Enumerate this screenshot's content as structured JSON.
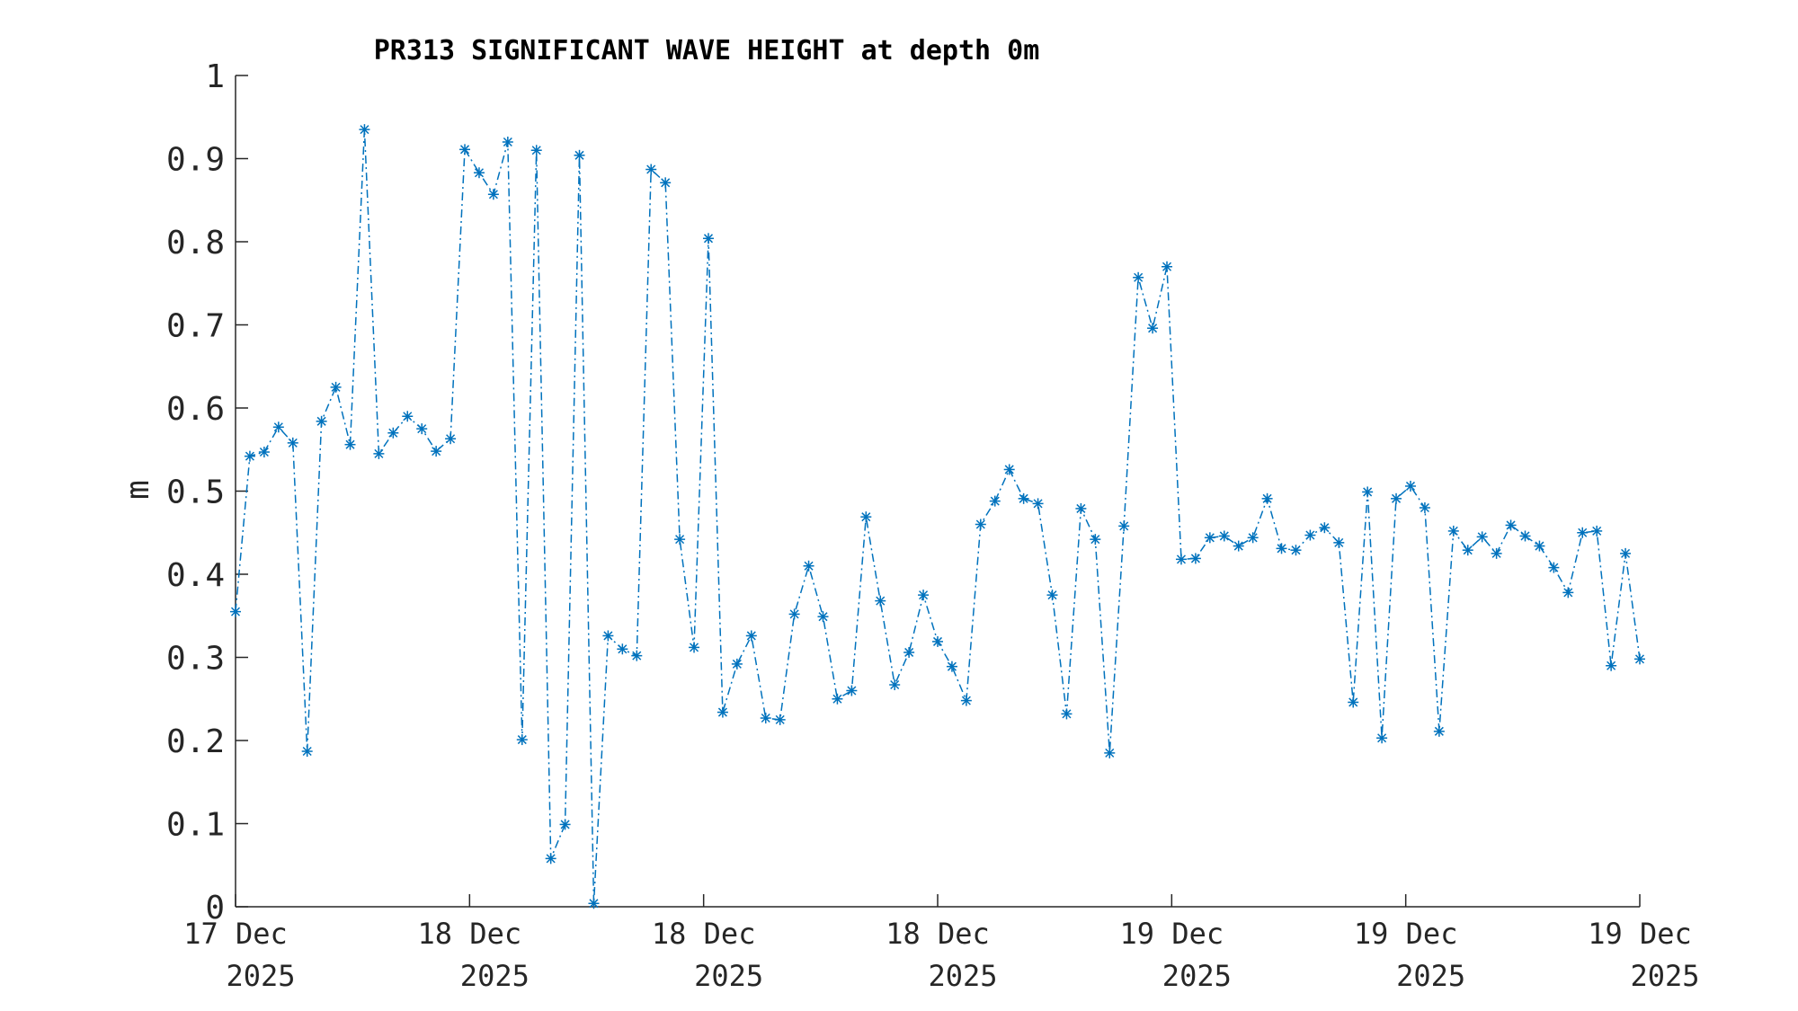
{
  "chart_data": {
    "type": "line",
    "title": "PR313 SIGNIFICANT WAVE HEIGHT at depth 0m",
    "xlabel": "",
    "ylabel": "m",
    "ylim": [
      0,
      1
    ],
    "yticks": [
      0,
      0.1,
      0.2,
      0.3,
      0.4,
      0.5,
      0.6,
      0.7,
      0.8,
      0.9,
      1
    ],
    "ytick_labels": [
      "0",
      "0.1",
      "0.2",
      "0.3",
      "0.4",
      "0.5",
      "0.6",
      "0.7",
      "0.8",
      "0.9",
      "1"
    ],
    "xticks": [
      {
        "line1": "17 Dec",
        "line2": "2025"
      },
      {
        "line1": "18 Dec",
        "line2": "2025"
      },
      {
        "line1": "18 Dec",
        "line2": "2025"
      },
      {
        "line1": "18 Dec",
        "line2": "2025"
      },
      {
        "line1": "19 Dec",
        "line2": "2025"
      },
      {
        "line1": "19 Dec",
        "line2": "2025"
      },
      {
        "line1": "19 Dec",
        "line2": "2025"
      }
    ],
    "marker": "asterisk",
    "line_style": "dash-dot",
    "color": "#0072BD",
    "grid": false,
    "legend": "none",
    "series": [
      {
        "values": [
          0.355,
          0.542,
          0.547,
          0.577,
          0.558,
          0.187,
          0.584,
          0.625,
          0.556,
          0.935,
          0.545,
          0.57,
          0.59,
          0.575,
          0.548,
          0.563,
          0.911,
          0.883,
          0.857,
          0.92,
          0.201,
          0.91,
          0.058,
          0.099,
          0.904,
          0.004,
          0.326,
          0.31,
          0.302,
          0.887,
          0.871,
          0.442,
          0.312,
          0.804,
          0.234,
          0.292,
          0.326,
          0.227,
          0.225,
          0.352,
          0.41,
          0.349,
          0.25,
          0.26,
          0.469,
          0.368,
          0.267,
          0.306,
          0.375,
          0.319,
          0.289,
          0.248,
          0.46,
          0.488,
          0.526,
          0.491,
          0.485,
          0.375,
          0.232,
          0.479,
          0.442,
          0.185,
          0.458,
          0.757,
          0.696,
          0.77,
          0.418,
          0.419,
          0.444,
          0.446,
          0.434,
          0.444,
          0.491,
          0.431,
          0.429,
          0.447,
          0.456,
          0.438,
          0.246,
          0.499,
          0.203,
          0.491,
          0.506,
          0.48,
          0.211,
          0.452,
          0.429,
          0.445,
          0.425,
          0.459,
          0.446,
          0.434,
          0.408,
          0.378,
          0.45,
          0.452,
          0.29,
          0.425,
          0.298
        ]
      }
    ]
  }
}
